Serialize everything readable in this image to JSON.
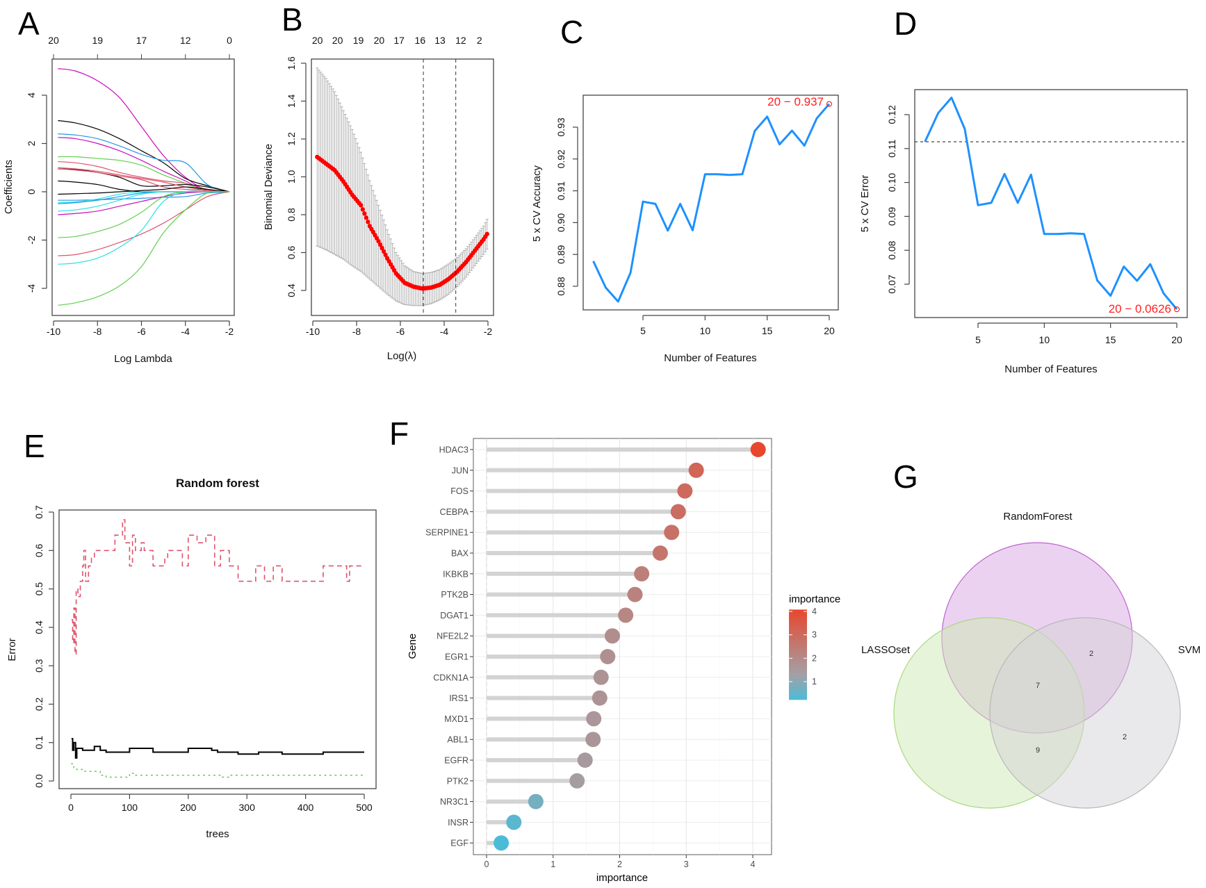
{
  "panel_labels": [
    "A",
    "B",
    "C",
    "D",
    "E",
    "F",
    "G"
  ],
  "chart_data": [
    {
      "type": "line",
      "xlabel": "Log Lambda",
      "ylabel": "Coefficients",
      "xlim": [
        -10,
        -2
      ],
      "ylim": [
        -5,
        5.3
      ],
      "x_ticks": [
        "-10",
        "-8",
        "-6",
        "-4",
        "-2"
      ],
      "y_ticks": [
        "-4",
        "-2",
        "0",
        "2",
        "4"
      ],
      "top_axis": {
        "at": [
          -10,
          -8,
          -6,
          -4,
          -2
        ],
        "labels": [
          "20",
          "19",
          "17",
          "12",
          "0"
        ]
      },
      "x": [
        -9.8,
        -9,
        -8,
        -7,
        -6,
        -5,
        -4,
        -3,
        -2
      ],
      "series": [
        {
          "color": "#CD0BBC",
          "values": [
            5.1,
            5.0,
            4.6,
            3.9,
            2.7,
            1.5,
            0.6,
            0.05,
            0
          ]
        },
        {
          "color": "#000000",
          "values": [
            2.95,
            2.85,
            2.6,
            2.2,
            1.7,
            1.2,
            0.55,
            0.25,
            0
          ]
        },
        {
          "color": "#2297E6",
          "values": [
            2.4,
            2.35,
            2.2,
            1.9,
            1.55,
            1.3,
            1.2,
            0.3,
            0
          ]
        },
        {
          "color": "#CD0BBC",
          "values": [
            2.25,
            2.2,
            2.0,
            1.7,
            1.3,
            0.85,
            0.45,
            0,
            0
          ]
        },
        {
          "color": "#61D04F",
          "values": [
            1.45,
            1.45,
            1.38,
            1.3,
            1.1,
            0.7,
            0.35,
            0,
            0
          ]
        },
        {
          "color": "#DF536B",
          "values": [
            1.25,
            1.2,
            1.05,
            0.8,
            0.6,
            0.45,
            0.35,
            0.1,
            0
          ]
        },
        {
          "color": "#000000",
          "values": [
            0.95,
            0.92,
            0.8,
            0.6,
            0.25,
            0.25,
            0.3,
            0.2,
            0
          ]
        },
        {
          "color": "#DF536B",
          "values": [
            0.95,
            0.9,
            0.8,
            0.65,
            0.5,
            0.2,
            0.1,
            0.05,
            0
          ]
        },
        {
          "color": "#DF536B",
          "values": [
            1.0,
            0.95,
            0.85,
            0.7,
            0.55,
            0.4,
            0.2,
            0.05,
            0
          ]
        },
        {
          "color": "#000000",
          "values": [
            0.45,
            0.4,
            0.3,
            0.1,
            0,
            0,
            0,
            0,
            0
          ]
        },
        {
          "color": "#000000",
          "values": [
            -0.1,
            -0.08,
            -0.05,
            0,
            0.05,
            0.1,
            0.2,
            0.1,
            0
          ]
        },
        {
          "color": "#2297E6",
          "values": [
            -0.35,
            -0.35,
            -0.33,
            -0.3,
            -0.27,
            -0.23,
            -0.2,
            -0.05,
            0
          ]
        },
        {
          "color": "#28E2E5",
          "values": [
            -0.45,
            -0.42,
            -0.3,
            -0.1,
            0,
            0,
            0,
            0,
            0
          ]
        },
        {
          "color": "#2297E6",
          "values": [
            -0.5,
            -0.45,
            -0.35,
            -0.2,
            -0.05,
            0,
            0,
            0,
            0
          ]
        },
        {
          "color": "#28E2E5",
          "values": [
            -0.8,
            -0.75,
            -0.6,
            -0.35,
            -0.1,
            0,
            0,
            0,
            0
          ]
        },
        {
          "color": "#CD0BBC",
          "values": [
            -0.95,
            -0.9,
            -0.8,
            -0.6,
            -0.4,
            -0.2,
            -0.05,
            0,
            0
          ]
        },
        {
          "color": "#61D04F",
          "values": [
            -1.9,
            -1.85,
            -1.65,
            -1.35,
            -0.85,
            -0.2,
            0,
            0,
            0
          ]
        },
        {
          "color": "#DF536B",
          "values": [
            -2.65,
            -2.6,
            -2.4,
            -2.1,
            -1.75,
            -1.3,
            -0.75,
            -0.2,
            0
          ]
        },
        {
          "color": "#28E2E5",
          "values": [
            -3.0,
            -2.95,
            -2.75,
            -2.3,
            -1.6,
            -0.4,
            0,
            0,
            0
          ]
        },
        {
          "color": "#61D04F",
          "values": [
            -4.7,
            -4.6,
            -4.35,
            -3.9,
            -3.1,
            -1.7,
            -0.75,
            -0.05,
            0
          ]
        }
      ]
    },
    {
      "type": "scatter",
      "xlabel": "Log(λ)",
      "ylabel": "Binomial Deviance",
      "xlim": [
        -10,
        -2
      ],
      "ylim": [
        0.3,
        1.62
      ],
      "x_ticks": [
        "-10",
        "-8",
        "-6",
        "-4",
        "-2"
      ],
      "y_ticks": [
        "0.4",
        "0.6",
        "0.8",
        "1.0",
        "1.2",
        "1.4",
        "1.6"
      ],
      "top_axis": {
        "at": [
          -9.79,
          -8.87,
          -7.92,
          -6.97,
          -6.06,
          -5.1,
          -4.19,
          -3.24,
          -2.39
        ],
        "labels": [
          "20",
          "20",
          "19",
          "20",
          "17",
          "16",
          "13",
          "12",
          "2"
        ]
      },
      "vlines": [
        -4.95,
        -3.47
      ],
      "point_color": "#FF0000",
      "errorbar_color": "#B0B0B0",
      "x": [
        -9.8,
        -9.4,
        -9.0,
        -8.6,
        -8.2,
        -7.8,
        -7.4,
        -7.0,
        -6.6,
        -6.2,
        -5.8,
        -5.4,
        -5.0,
        -4.6,
        -4.2,
        -3.8,
        -3.4,
        -3.0,
        -2.6,
        -2.2,
        -2.0
      ],
      "mean": [
        1.105,
        1.07,
        1.035,
        0.975,
        0.905,
        0.85,
        0.74,
        0.66,
        0.57,
        0.49,
        0.44,
        0.42,
        0.41,
        0.415,
        0.43,
        0.46,
        0.5,
        0.55,
        0.61,
        0.67,
        0.705
      ],
      "upper": [
        1.575,
        1.52,
        1.45,
        1.35,
        1.25,
        1.13,
        0.98,
        0.85,
        0.72,
        0.6,
        0.53,
        0.5,
        0.49,
        0.495,
        0.51,
        0.54,
        0.575,
        0.62,
        0.68,
        0.74,
        0.785
      ],
      "lower": [
        0.635,
        0.615,
        0.59,
        0.565,
        0.53,
        0.5,
        0.46,
        0.42,
        0.38,
        0.345,
        0.325,
        0.32,
        0.32,
        0.33,
        0.35,
        0.38,
        0.42,
        0.47,
        0.53,
        0.59,
        0.625
      ]
    },
    {
      "type": "line",
      "xlabel": "Number of Features",
      "ylabel": "5 x CV Accuracy",
      "x_ticks": [
        "5",
        "10",
        "15",
        "20"
      ],
      "y_ticks": [
        "0.88",
        "0.89",
        "0.90",
        "0.91",
        "0.92",
        "0.93"
      ],
      "line_color": "#1E90FF",
      "x": [
        1,
        2,
        3,
        4,
        5,
        6,
        7,
        8,
        9,
        10,
        11,
        12,
        13,
        14,
        15,
        16,
        17,
        18,
        19,
        20
      ],
      "values": [
        0.8879,
        0.8796,
        0.8752,
        0.8843,
        0.9066,
        0.9059,
        0.8975,
        0.9059,
        0.8976,
        0.9152,
        0.9152,
        0.915,
        0.9152,
        0.9288,
        0.9333,
        0.9246,
        0.9289,
        0.9242,
        0.9328,
        0.9373
      ],
      "annotation": "20 − 0.937",
      "annotation_color": "#FF0000"
    },
    {
      "type": "line",
      "xlabel": "Number of Features",
      "ylabel": "5 x CV Error",
      "x_ticks": [
        "5",
        "10",
        "15",
        "20"
      ],
      "y_ticks": [
        "0.07",
        "0.08",
        "0.09",
        "0.10",
        "0.11",
        "0.12"
      ],
      "line_color": "#1E90FF",
      "x": [
        1,
        2,
        3,
        4,
        5,
        6,
        7,
        8,
        9,
        10,
        11,
        12,
        13,
        14,
        15,
        16,
        17,
        18,
        19,
        20
      ],
      "values": [
        0.112,
        0.1205,
        0.125,
        0.1158,
        0.0933,
        0.094,
        0.1025,
        0.094,
        0.1023,
        0.0848,
        0.0848,
        0.085,
        0.0848,
        0.0711,
        0.0666,
        0.0752,
        0.071,
        0.0759,
        0.0673,
        0.0626
      ],
      "hline": 0.112,
      "annotation": "20 − 0.0626",
      "annotation_color": "#FF0000"
    },
    {
      "type": "line",
      "title": "Random forest",
      "xlabel": "trees",
      "ylabel": "Error",
      "x_ticks": [
        "0",
        "100",
        "200",
        "300",
        "400",
        "500"
      ],
      "y_ticks": [
        "0.0",
        "0.1",
        "0.2",
        "0.3",
        "0.4",
        "0.5",
        "0.6",
        "0.7"
      ],
      "series": [
        {
          "color": "#DF536B",
          "style": "dashed",
          "points": [
            [
              1,
              0.42
            ],
            [
              3,
              0.36
            ],
            [
              5,
              0.45
            ],
            [
              7,
              0.33
            ],
            [
              9,
              0.5
            ],
            [
              12,
              0.48
            ],
            [
              16,
              0.52
            ],
            [
              20,
              0.56
            ],
            [
              22,
              0.6
            ],
            [
              25,
              0.52
            ],
            [
              30,
              0.56
            ],
            [
              35,
              0.58
            ],
            [
              40,
              0.6
            ],
            [
              50,
              0.6
            ],
            [
              70,
              0.6
            ],
            [
              75,
              0.64
            ],
            [
              88,
              0.68
            ],
            [
              92,
              0.62
            ],
            [
              100,
              0.56
            ],
            [
              105,
              0.64
            ],
            [
              110,
              0.6
            ],
            [
              120,
              0.62
            ],
            [
              125,
              0.6
            ],
            [
              140,
              0.56
            ],
            [
              160,
              0.58
            ],
            [
              165,
              0.6
            ],
            [
              190,
              0.56
            ],
            [
              200,
              0.64
            ],
            [
              215,
              0.62
            ],
            [
              230,
              0.64
            ],
            [
              245,
              0.56
            ],
            [
              255,
              0.6
            ],
            [
              270,
              0.56
            ],
            [
              285,
              0.52
            ],
            [
              315,
              0.56
            ],
            [
              330,
              0.52
            ],
            [
              345,
              0.56
            ],
            [
              360,
              0.52
            ],
            [
              430,
              0.56
            ],
            [
              470,
              0.52
            ],
            [
              475,
              0.56
            ],
            [
              500,
              0.56
            ]
          ]
        },
        {
          "color": "#000000",
          "style": "solid",
          "points": [
            [
              1,
              0.11
            ],
            [
              3,
              0.08
            ],
            [
              5,
              0.1
            ],
            [
              8,
              0.06
            ],
            [
              10,
              0.085
            ],
            [
              20,
              0.08
            ],
            [
              40,
              0.09
            ],
            [
              50,
              0.08
            ],
            [
              60,
              0.075
            ],
            [
              100,
              0.085
            ],
            [
              140,
              0.075
            ],
            [
              200,
              0.085
            ],
            [
              240,
              0.08
            ],
            [
              250,
              0.075
            ],
            [
              285,
              0.07
            ],
            [
              300,
              0.07
            ],
            [
              320,
              0.075
            ],
            [
              360,
              0.07
            ],
            [
              430,
              0.075
            ],
            [
              500,
              0.075
            ]
          ]
        },
        {
          "color": "#61D04F",
          "style": "dotted",
          "points": [
            [
              1,
              0.045
            ],
            [
              5,
              0.035
            ],
            [
              10,
              0.03
            ],
            [
              20,
              0.025
            ],
            [
              35,
              0.025
            ],
            [
              50,
              0.015
            ],
            [
              60,
              0.01
            ],
            [
              100,
              0.02
            ],
            [
              110,
              0.015
            ],
            [
              255,
              0.01
            ],
            [
              270,
              0.015
            ],
            [
              500,
              0.015
            ]
          ]
        }
      ]
    },
    {
      "type": "scatter",
      "xlabel": "importance",
      "ylabel": "Gene",
      "x_ticks": [
        "0",
        "1",
        "2",
        "3",
        "4"
      ],
      "categories": [
        "HDAC3",
        "JUN",
        "FOS",
        "CEBPA",
        "SERPINE1",
        "BAX",
        "IKBKB",
        "PTK2B",
        "DGAT1",
        "NFE2L2",
        "EGR1",
        "CDKN1A",
        "IRS1",
        "MXD1",
        "ABL1",
        "EGFR",
        "PTK2",
        "NR3C1",
        "INSR",
        "EGF"
      ],
      "values": [
        4.08,
        3.15,
        2.98,
        2.88,
        2.78,
        2.61,
        2.33,
        2.23,
        2.09,
        1.89,
        1.82,
        1.72,
        1.7,
        1.61,
        1.6,
        1.48,
        1.36,
        0.74,
        0.41,
        0.22
      ],
      "legend": {
        "title": "importance",
        "ticks": [
          "1",
          "2",
          "3",
          "4"
        ],
        "position": "right"
      },
      "color_scale": {
        "low": "#4BBCD8",
        "mid": "#A3A0A6",
        "high": "#E8472E",
        "mid_value": 1.3
      },
      "segment_color": "#D3D3D3"
    },
    {
      "type": "venn",
      "sets": [
        {
          "name": "RandomForest",
          "fill": "#D9A6E3",
          "stroke": "#C060D0"
        },
        {
          "name": "LASSOset",
          "fill": "#CDE9B4",
          "stroke": "#A8D880"
        },
        {
          "name": "SVM",
          "fill": "#D3D1D6",
          "stroke": "#B8B6BA"
        }
      ],
      "regions": [
        {
          "sets": [
            "RandomForest",
            "SVM"
          ],
          "count": "2"
        },
        {
          "sets": [
            "RandomForest",
            "LASSOset",
            "SVM"
          ],
          "count": "7"
        },
        {
          "sets": [
            "LASSOset",
            "SVM"
          ],
          "count": "9"
        },
        {
          "sets": [
            "SVM"
          ],
          "count": "2"
        }
      ]
    }
  ]
}
